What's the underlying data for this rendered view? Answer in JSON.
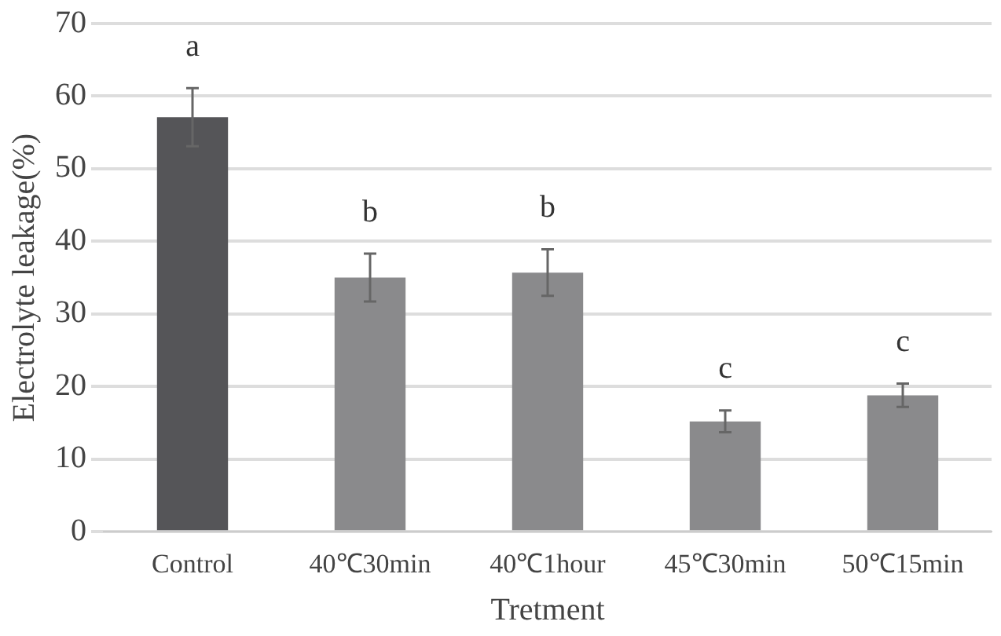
{
  "chart_data": {
    "type": "bar",
    "xlabel": "Tretment",
    "ylabel": "Electrolyte leakage(%)",
    "categories": [
      "Control",
      "40℃30min",
      "40℃1hour",
      "45℃30min",
      "50℃15min"
    ],
    "values": [
      57.1,
      35,
      35.7,
      15.2,
      18.8
    ],
    "colors": [
      "#555558",
      "#8a8a8c",
      "#8a8a8c",
      "#8a8a8c",
      "#8a8a8c"
    ],
    "errors": [
      4,
      3.3,
      3.2,
      1.5,
      1.6
    ],
    "ylim": [
      0,
      70
    ],
    "yticks": [
      0,
      10,
      20,
      30,
      40,
      50,
      60,
      70
    ],
    "grid": "y",
    "annotations": [
      "a",
      "b",
      "b",
      "c",
      "c"
    ]
  }
}
